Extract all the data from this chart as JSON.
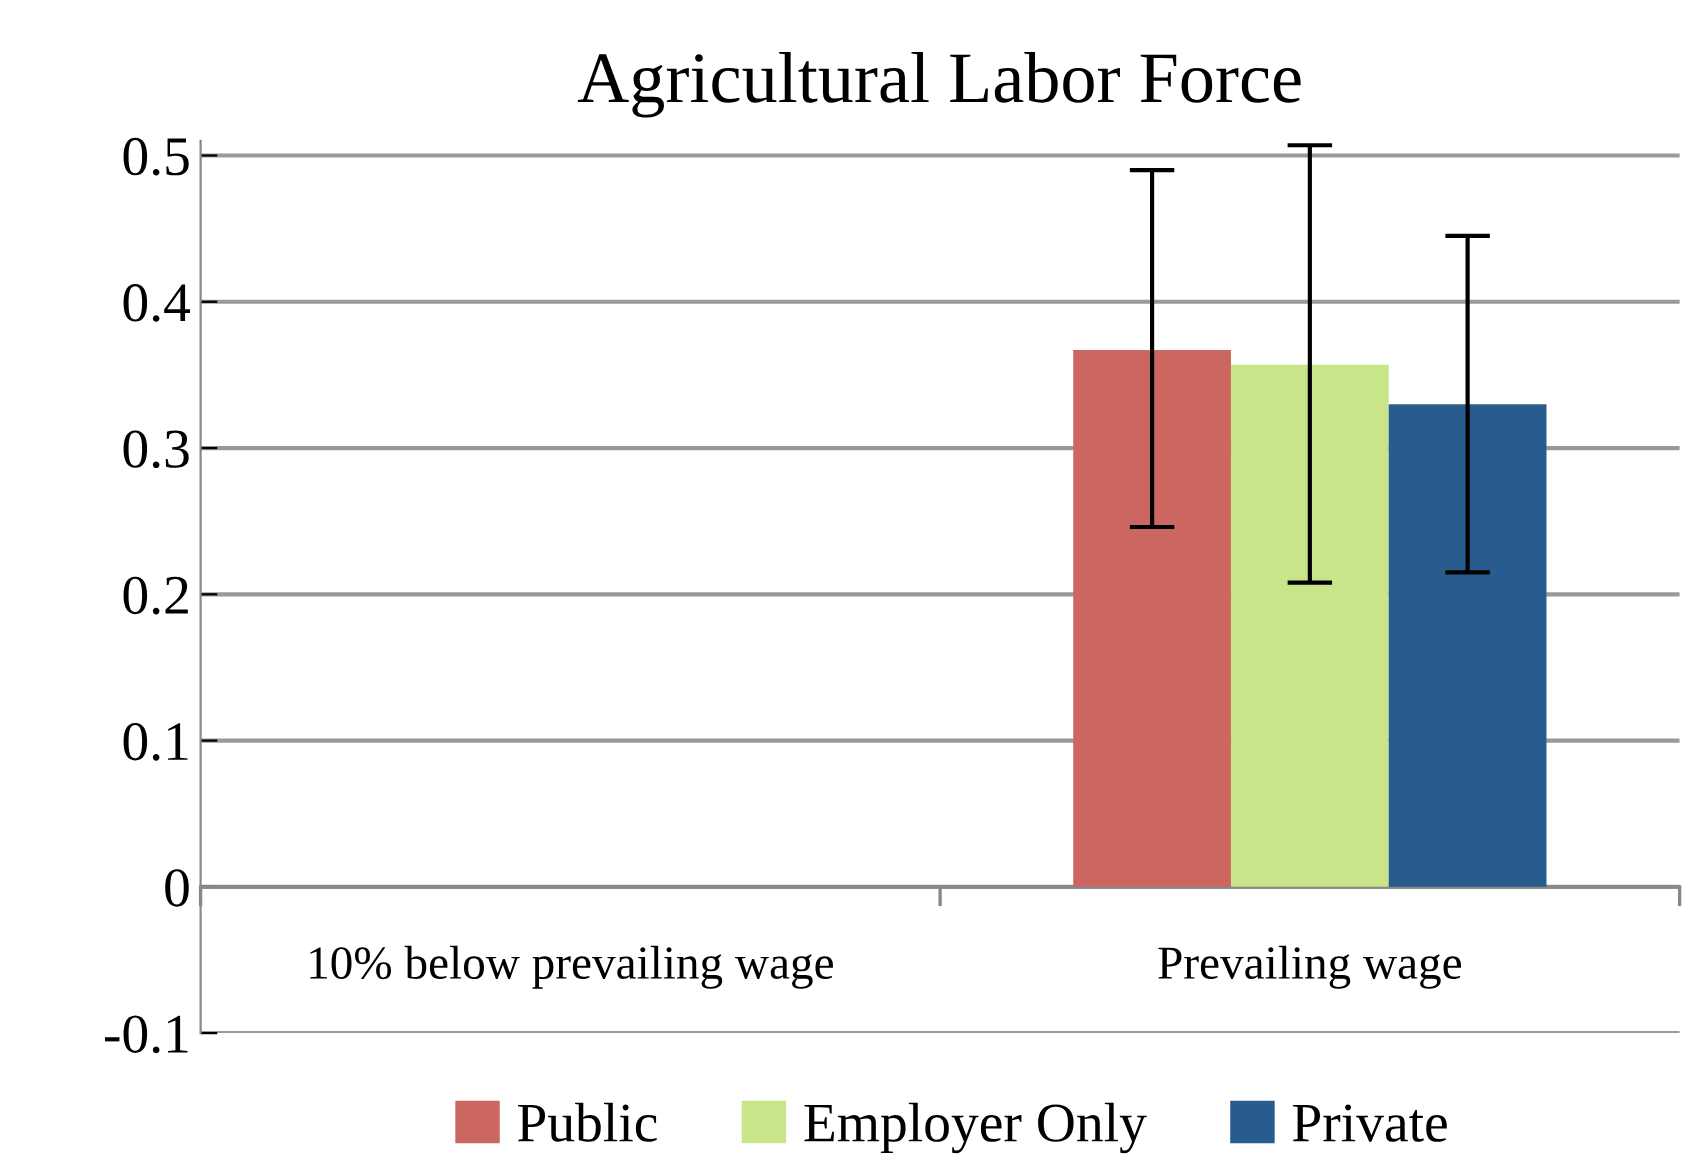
{
  "chart_data": {
    "type": "bar",
    "title": "Agricultural Labor Force",
    "categories": [
      "10% below prevailing wage",
      "Prevailing wage"
    ],
    "series": [
      {
        "name": "Public",
        "color": "#cc6660",
        "values": [
          null,
          0.367
        ],
        "errors": [
          null,
          [
            0.246,
            0.49
          ]
        ]
      },
      {
        "name": "Employer Only",
        "color": "#c8e58a",
        "values": [
          null,
          0.357
        ],
        "errors": [
          null,
          [
            0.208,
            0.507
          ]
        ]
      },
      {
        "name": "Private",
        "color": "#285c8e",
        "values": [
          null,
          0.33
        ],
        "errors": [
          null,
          [
            0.215,
            0.445
          ]
        ]
      }
    ],
    "ylim": [
      -0.1,
      0.51
    ],
    "yticks": [
      -0.1,
      0,
      0.1,
      0.2,
      0.3,
      0.4,
      0.5
    ],
    "grid": "y",
    "legend": "bottom"
  }
}
